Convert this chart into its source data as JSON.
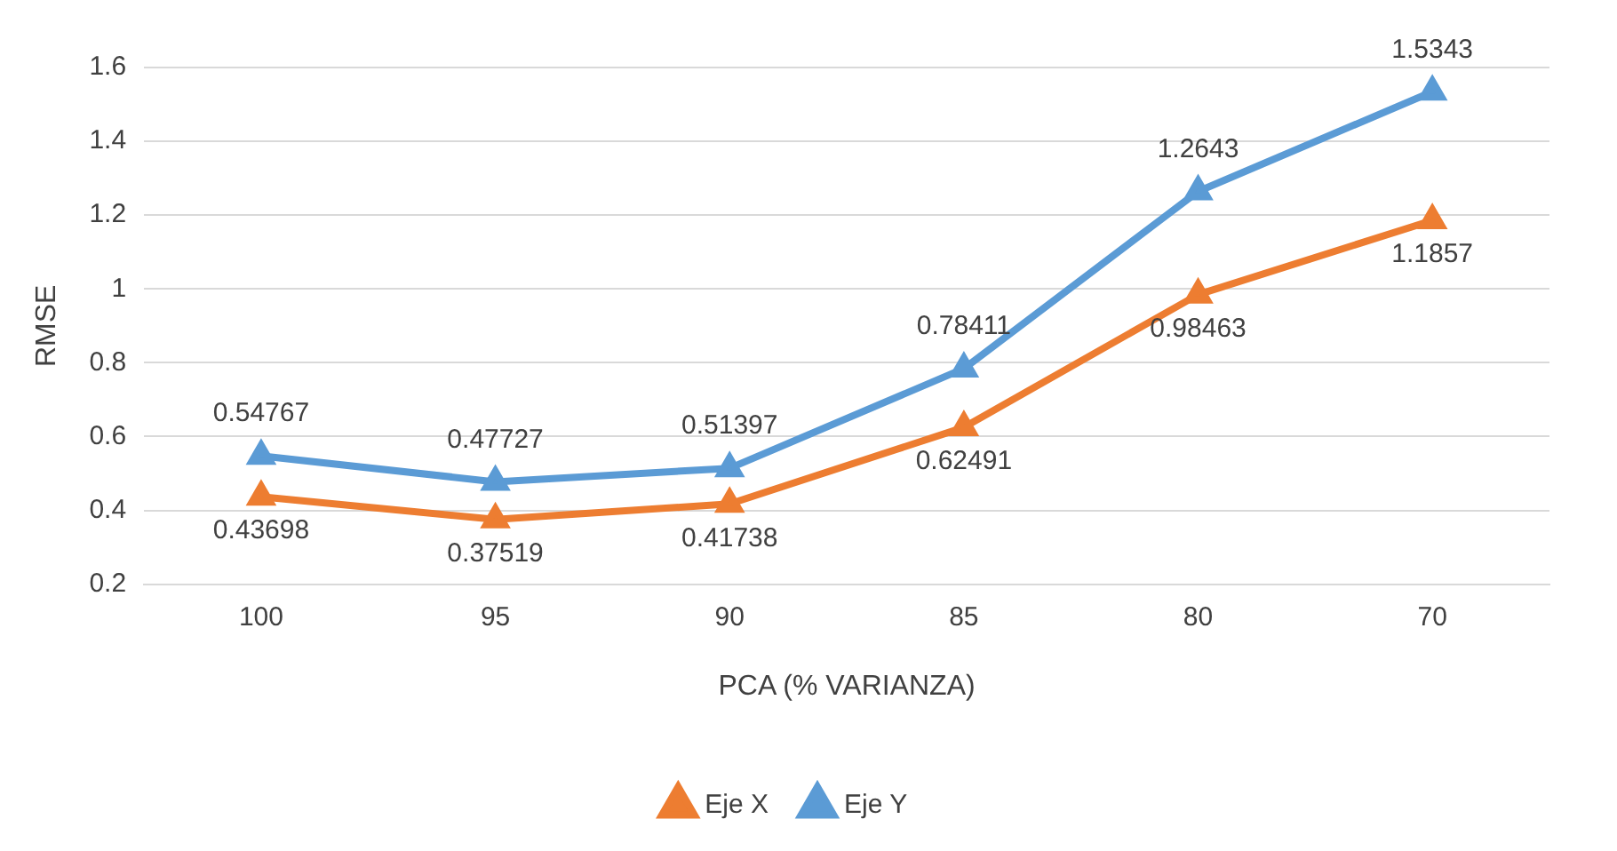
{
  "chart_data": {
    "type": "line",
    "categories": [
      "100",
      "95",
      "90",
      "85",
      "80",
      "70"
    ],
    "series": [
      {
        "name": "Eje X",
        "color": "#ed7d31",
        "values": [
          0.43698,
          0.37519,
          0.41738,
          0.62491,
          0.98463,
          1.1857
        ]
      },
      {
        "name": "Eje Y",
        "color": "#5b9bd5",
        "values": [
          0.54767,
          0.47727,
          0.51397,
          0.78411,
          1.2643,
          1.5343
        ]
      }
    ],
    "xlabel": "PCA (% VARIANZA)",
    "ylabel": "RMSE",
    "ylim": [
      0.2,
      1.6
    ],
    "yticks": [
      0.2,
      0.4,
      0.6,
      0.8,
      1,
      1.2,
      1.4,
      1.6
    ],
    "grid": "y",
    "legend": "bottom",
    "marker": "triangle",
    "line_style": "solid",
    "data_labels": true
  }
}
